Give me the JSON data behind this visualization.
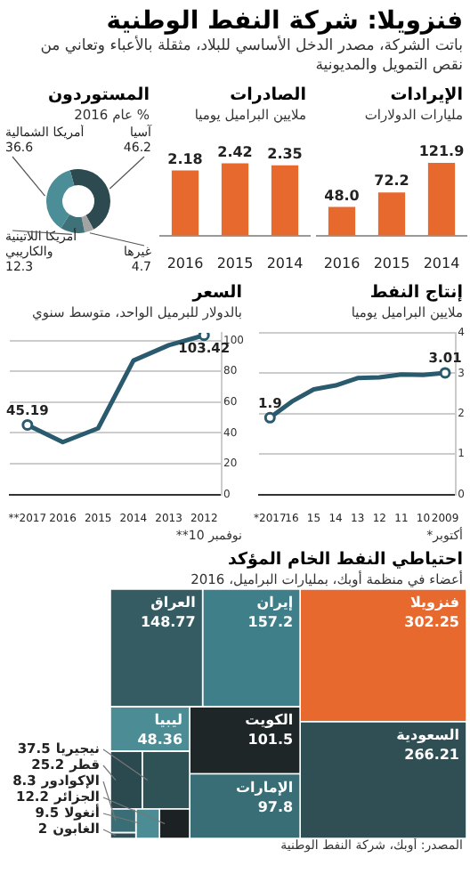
{
  "chart_data": [
    {
      "type": "other",
      "title": "فنزويلا: شركة النفط الوطنية",
      "subtitle": "باتت الشركة، مصدر الدخل الأساسي للبلاد، مثقلة بالأعباء وتعاني من نقص التمويل والمديونية"
    },
    {
      "type": "bar",
      "title": "الإيرادات",
      "subtitle": "مليارات الدولارات",
      "categories": [
        "2016",
        "2015",
        "2014"
      ],
      "values": [
        48.0,
        72.2,
        121.9
      ],
      "value_labels": [
        "48.0",
        "72.2",
        "121.9"
      ],
      "color": "#e8692d"
    },
    {
      "type": "bar",
      "title": "الصادرات",
      "subtitle": "ملايين البراميل يوميا",
      "categories": [
        "2016",
        "2015",
        "2014"
      ],
      "values": [
        2.18,
        2.42,
        2.35
      ],
      "data_labels": true,
      "color": "#e8692d"
    },
    {
      "type": "donut",
      "title": "المستوردون",
      "subtitle": "% عام 2016",
      "categories": [
        "آسيا",
        "غيرها",
        "أمريكا اللاتينية والكاريبي",
        "أمريكا الشمالية"
      ],
      "values": [
        46.2,
        4.7,
        12.3,
        36.6
      ],
      "colors": [
        "#2c4a50",
        "#a3a3a3",
        "#3e7178",
        "#4b8e97"
      ],
      "data_labels": true
    },
    {
      "type": "line",
      "title": "إنتاج النفط",
      "subtitle": "ملايين البراميل يوميا",
      "categories": [
        "*2017",
        "16",
        "15",
        "14",
        "13",
        "12",
        "11",
        "10",
        "2009"
      ],
      "values": [
        1.9,
        2.3,
        2.6,
        2.7,
        2.88,
        2.9,
        2.97,
        2.96,
        3.01
      ],
      "value_labels": [
        "1.9",
        null,
        null,
        null,
        null,
        null,
        null,
        null,
        "3.01"
      ],
      "color": "#2a5a6e",
      "ylim": [
        0,
        4
      ],
      "yticks": [
        0,
        1,
        2,
        3,
        4
      ],
      "grid": "y",
      "annotations": [
        "*أكتوبر"
      ]
    },
    {
      "type": "line",
      "title": "السعر",
      "subtitle": "بالدولار للبرميل الواحد، متوسط سنوي",
      "categories": [
        "**2017",
        "2016",
        "2015",
        "2014",
        "2013",
        "2012"
      ],
      "values": [
        45.19,
        34,
        43,
        87,
        97,
        103.42
      ],
      "value_labels": [
        "45.19",
        null,
        null,
        null,
        null,
        "103.42"
      ],
      "color": "#2a5a6e",
      "ylim": [
        0,
        105
      ],
      "yticks": [
        0,
        20,
        40,
        60,
        80,
        100
      ],
      "grid": "y",
      "annotations": [
        "**10 نوفمبر"
      ]
    },
    {
      "type": "other",
      "title": "احتياطي النفط الخام المؤكد",
      "subtitle": "أعضاء في منظمة أوبك، بمليارات البراميل، 2016",
      "categories": [
        "فنزويلا",
        "السعودية",
        "إيران",
        "العراق",
        "الكويت",
        "الإمارات",
        "ليبيا",
        "نيجيريا",
        "قطر",
        "الجزائر",
        "أنغولا",
        "الإكوادور",
        "الغابون"
      ],
      "values": [
        302.25,
        266.21,
        157.2,
        148.77,
        101.5,
        97.8,
        48.36,
        37.5,
        25.2,
        12.2,
        9.5,
        8.3,
        2
      ],
      "colors": [
        "#e8692d",
        "#2f4f55",
        "#3f7f8a",
        "#345c62",
        "#1f2628",
        "#3a6e76",
        "#4b8c95",
        "#2f5257",
        "#2b4a4f",
        "#1c2224",
        "#4b8c95",
        "#3a6e76",
        "#2f4f55"
      ],
      "data_labels": true,
      "annotations": [
        "المصدر: أوبك، شركة النفط الوطنية"
      ]
    }
  ]
}
